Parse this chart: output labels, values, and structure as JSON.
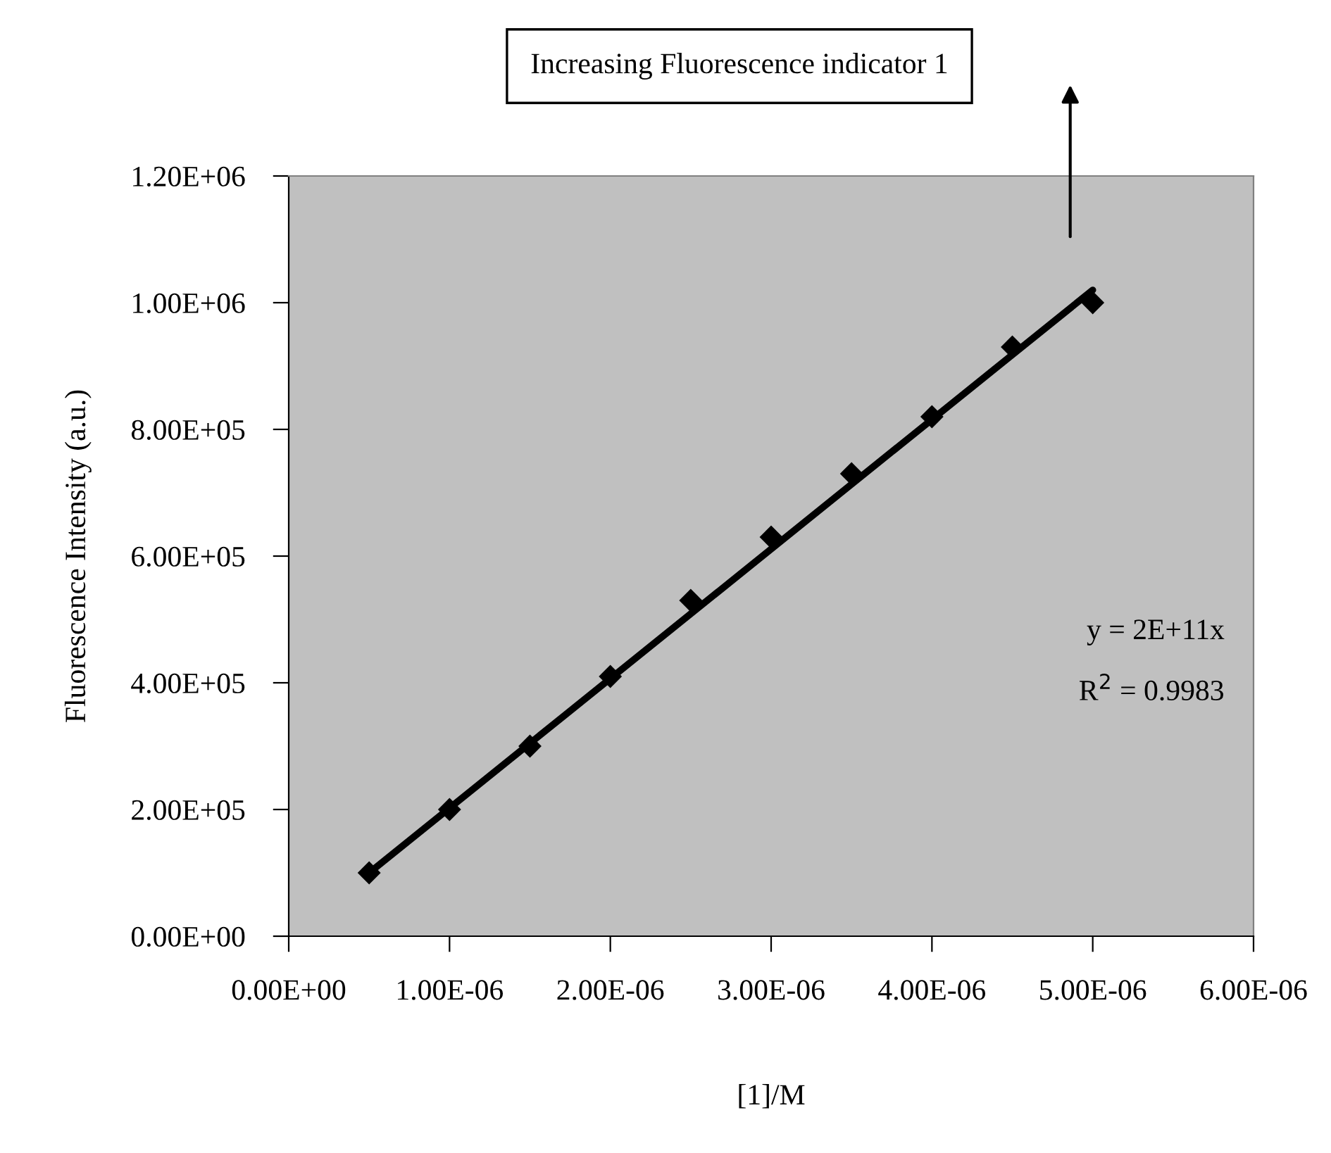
{
  "chart_data": {
    "type": "scatter",
    "xlabel": "[1]/M",
    "ylabel": "Fluorescence Intensity (a.u.)",
    "x": [
      5e-07,
      1e-06,
      1.5e-06,
      2e-06,
      2.5e-06,
      3e-06,
      3.5e-06,
      4e-06,
      4.5e-06,
      5e-06
    ],
    "series": [
      {
        "color": "#000000",
        "marker": "diamond",
        "values": [
          100000,
          200000,
          300000,
          410000,
          530000,
          630000,
          730000,
          820000,
          930000,
          1000000
        ]
      },
      {
        "type": "line",
        "color": "#000000",
        "line_style": "solid",
        "marker": "none",
        "x": [
          5e-07,
          5e-06
        ],
        "values": [
          100000,
          1020000
        ]
      }
    ],
    "xlim": [
      0,
      6e-06
    ],
    "xticks": [
      {
        "value": 0,
        "label": "0.00E+00"
      },
      {
        "value": 1e-06,
        "label": "1.00E-06"
      },
      {
        "value": 2e-06,
        "label": "2.00E-06"
      },
      {
        "value": 3e-06,
        "label": "3.00E-06"
      },
      {
        "value": 4e-06,
        "label": "4.00E-06"
      },
      {
        "value": 5e-06,
        "label": "5.00E-06"
      },
      {
        "value": 6e-06,
        "label": "6.00E-06"
      }
    ],
    "ylim": [
      0,
      1200000
    ],
    "yticks": [
      {
        "value": 0,
        "label": "0.00E+00"
      },
      {
        "value": 200000,
        "label": "2.00E+05"
      },
      {
        "value": 400000,
        "label": "4.00E+05"
      },
      {
        "value": 600000,
        "label": "6.00E+05"
      },
      {
        "value": 800000,
        "label": "8.00E+05"
      },
      {
        "value": 1000000,
        "label": "1.00E+06"
      },
      {
        "value": 1200000,
        "label": "1.20E+06"
      }
    ],
    "grid": false,
    "legend": false,
    "annotations": [
      "y = 2E+11x",
      "R$^{2}$ = 0.9983",
      "Increasing Fluorescence indicator 1"
    ]
  }
}
